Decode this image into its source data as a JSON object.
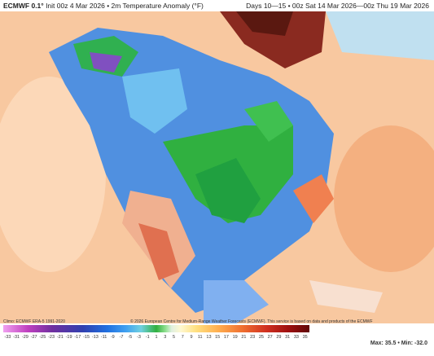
{
  "header": {
    "model": "ECMWF 0.1°",
    "subtitle": "Init 00z 4 Mar 2026 • 2m Temperature Anomaly (°F)",
    "valid": "Days 10—15 • 00z Sat 14 Mar 2026—00z Thu 19 Mar 2026"
  },
  "footer": {
    "climo": "Climo: ECMWF ERA-5 1991-2020",
    "copyright": "© 2026 European Centre for Medium-Range Weather Forecasts (ECMWF). This service is based on data and products of the ECMWF",
    "stats": "Max: 35.5 • Min: -32.0"
  },
  "colorbar": {
    "ticks": [
      -33,
      -31,
      -29,
      -27,
      -25,
      -23,
      -21,
      -19,
      -17,
      -15,
      -13,
      -11,
      -9,
      -7,
      -5,
      -3,
      -1,
      1,
      3,
      5,
      7,
      9,
      11,
      13,
      15,
      17,
      19,
      21,
      23,
      25,
      27,
      29,
      31,
      33,
      35
    ]
  }
}
